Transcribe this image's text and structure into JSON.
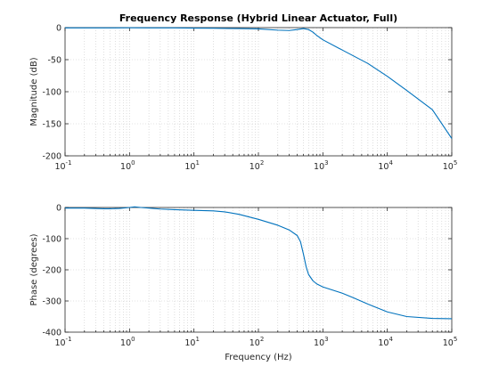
{
  "chart_data": [
    {
      "type": "line",
      "title": "Frequency Response (Hybrid Linear Actuator, Full)",
      "xlabel": "",
      "ylabel": "Magnitude (dB)",
      "xscale": "log",
      "xlim": [
        0.1,
        100000
      ],
      "ylim": [
        -200,
        0
      ],
      "xticks": [
        {
          "base": "10",
          "exp": "-1"
        },
        {
          "base": "10",
          "exp": "0"
        },
        {
          "base": "10",
          "exp": "1"
        },
        {
          "base": "10",
          "exp": "2"
        },
        {
          "base": "10",
          "exp": "3"
        },
        {
          "base": "10",
          "exp": "4"
        },
        {
          "base": "10",
          "exp": "5"
        }
      ],
      "yticks": [
        "0",
        "-50",
        "-100",
        "-150",
        "-200"
      ],
      "grid": true,
      "series": [
        {
          "color": "#0072bd",
          "x": [
            0.1,
            0.2,
            0.5,
            1,
            2,
            5,
            10,
            20,
            50,
            100,
            200,
            300,
            400,
            500,
            600,
            700,
            800,
            1000,
            2000,
            5000,
            10000,
            20000,
            50000,
            100000
          ],
          "y": [
            -0.5,
            -0.5,
            -0.5,
            -0.3,
            -0.4,
            -0.5,
            -0.8,
            -1,
            -1.5,
            -2,
            -4,
            -4.5,
            -3,
            -1.5,
            -3,
            -7,
            -12,
            -19,
            -35,
            -56,
            -76,
            -98,
            -128,
            -173
          ]
        }
      ]
    },
    {
      "type": "line",
      "title": "",
      "xlabel": "Frequency (Hz)",
      "ylabel": "Phase (degrees)",
      "xscale": "log",
      "xlim": [
        0.1,
        100000
      ],
      "ylim": [
        -400,
        0
      ],
      "xticks": [
        {
          "base": "10",
          "exp": "-1"
        },
        {
          "base": "10",
          "exp": "0"
        },
        {
          "base": "10",
          "exp": "1"
        },
        {
          "base": "10",
          "exp": "2"
        },
        {
          "base": "10",
          "exp": "3"
        },
        {
          "base": "10",
          "exp": "4"
        },
        {
          "base": "10",
          "exp": "5"
        }
      ],
      "yticks": [
        "0",
        "-100",
        "-200",
        "-300",
        "-400"
      ],
      "grid": true,
      "series": [
        {
          "color": "#0072bd",
          "x": [
            0.1,
            0.2,
            0.4,
            0.5,
            0.7,
            1,
            1.2,
            1.5,
            2,
            3,
            5,
            10,
            20,
            30,
            50,
            100,
            200,
            300,
            400,
            450,
            500,
            550,
            600,
            700,
            800,
            1000,
            2000,
            3000,
            5000,
            10000,
            20000,
            50000,
            100000
          ],
          "y": [
            -2,
            -2,
            -4,
            -4,
            -3,
            0,
            2,
            0,
            -2,
            -5,
            -7,
            -9,
            -11,
            -14,
            -22,
            -38,
            -57,
            -72,
            -90,
            -110,
            -150,
            -190,
            -215,
            -235,
            -245,
            -255,
            -275,
            -290,
            -310,
            -335,
            -350,
            -356,
            -357
          ]
        }
      ]
    }
  ]
}
